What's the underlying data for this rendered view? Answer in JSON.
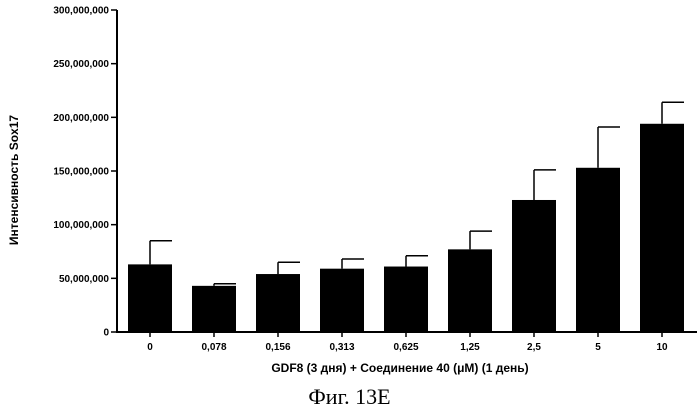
{
  "figure_caption": "Фиг. 13E",
  "chart_data": {
    "type": "bar",
    "title": "",
    "xlabel": "GDF8 (3 дня) + Соединение 40 (μM) (1 день)",
    "ylabel": "Интенсивность Sox17",
    "categories": [
      "0",
      "0,078",
      "0,156",
      "0,313",
      "0,625",
      "1,25",
      "2,5",
      "5",
      "10"
    ],
    "values": [
      63000000,
      43000000,
      54000000,
      59000000,
      61000000,
      77000000,
      123000000,
      153000000,
      194000000
    ],
    "error_bars": [
      22000000,
      2000000,
      11000000,
      9000000,
      10000000,
      17000000,
      28000000,
      38000000,
      20000000
    ],
    "ylim": [
      0,
      300000000
    ],
    "yticks": [
      0,
      50000000,
      100000000,
      150000000,
      200000000,
      250000000,
      300000000
    ],
    "ytick_labels": [
      "0",
      "50,000,000",
      "100,000,000",
      "150,000,000",
      "200,000,000",
      "250,000,000",
      "300,000,000"
    ],
    "grid": false,
    "bar_color": "#000000"
  }
}
